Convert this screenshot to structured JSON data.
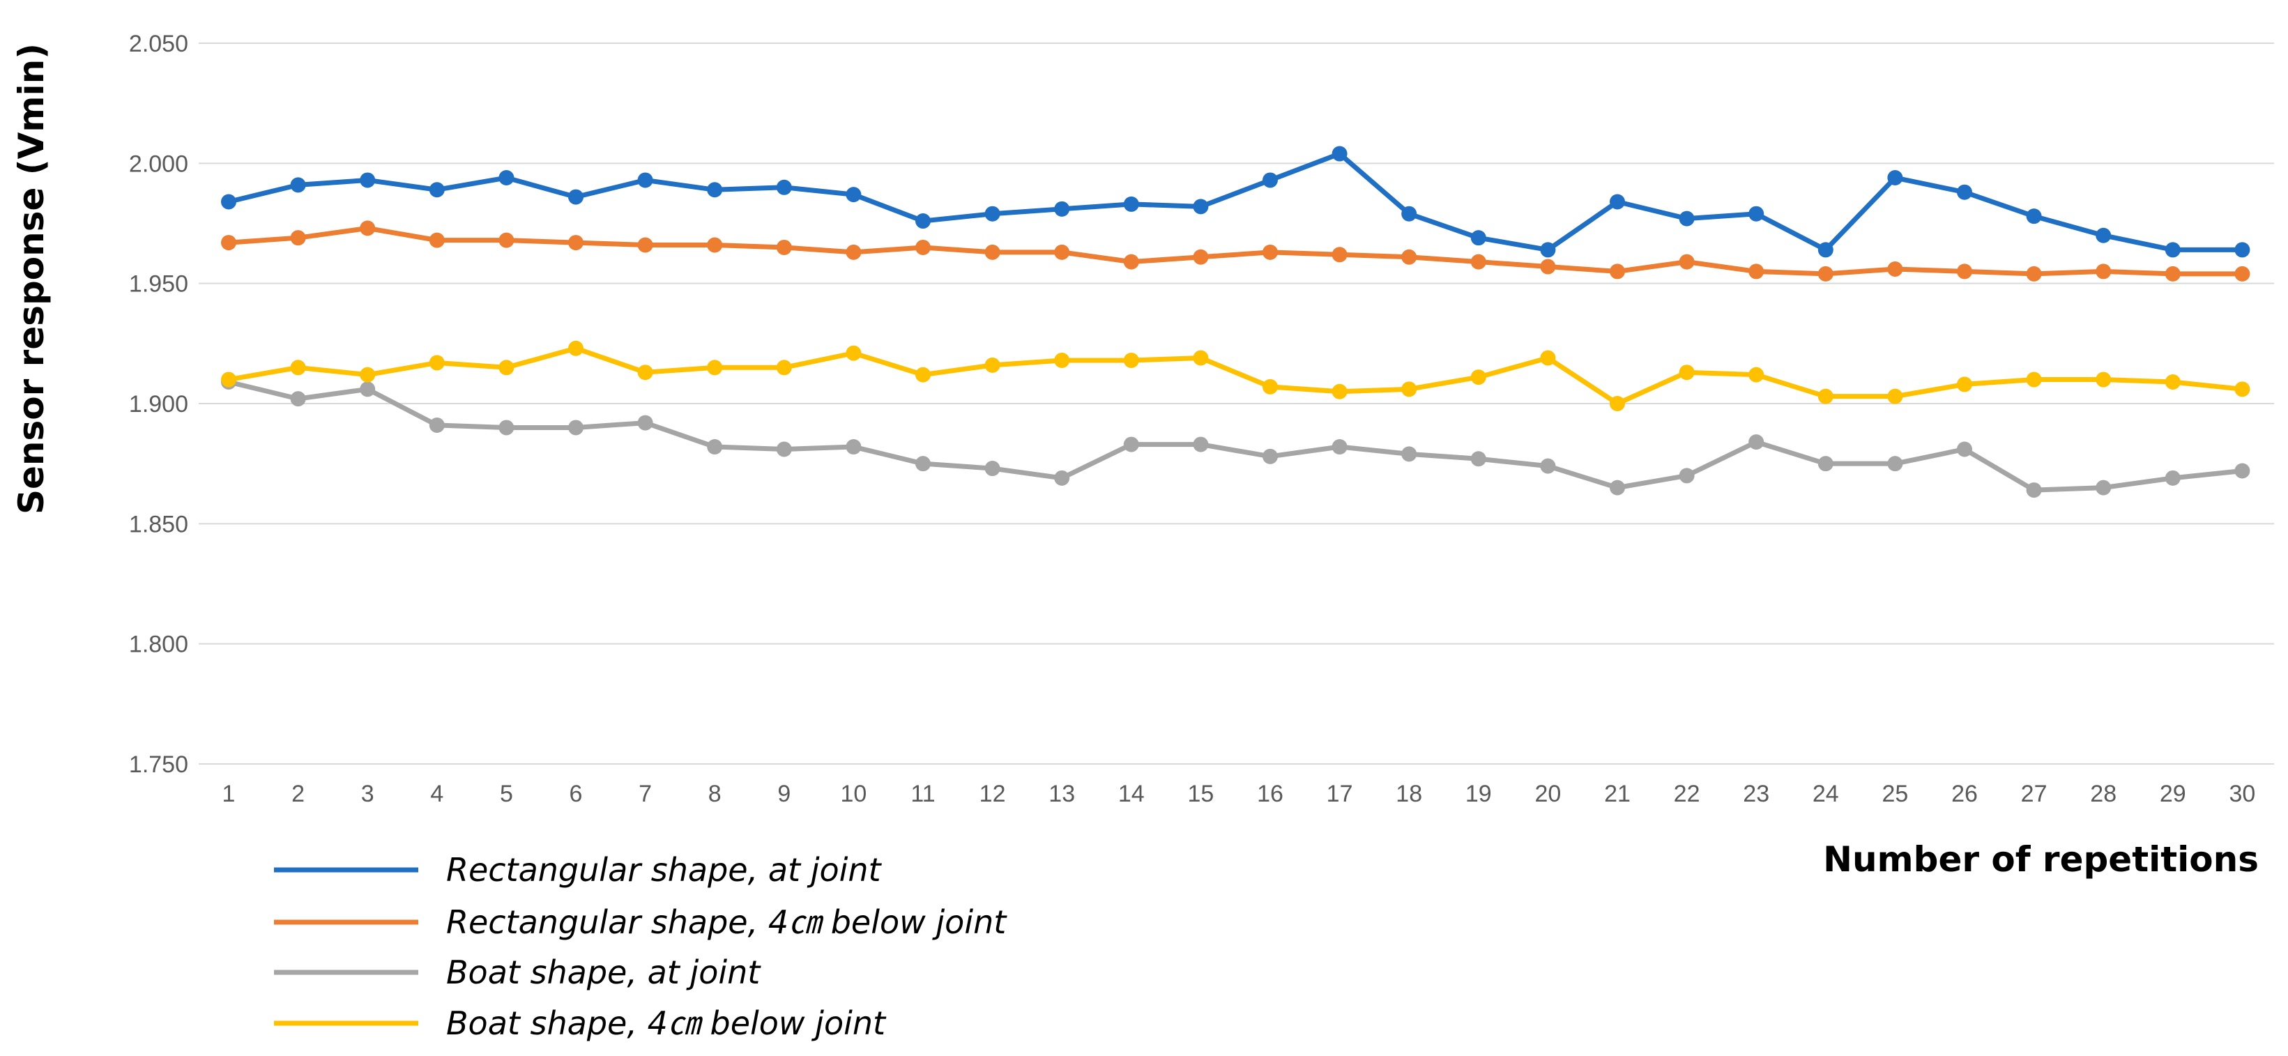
{
  "chart_data": {
    "type": "line",
    "title": "",
    "xlabel": "Number of repetitions",
    "ylabel": "Sensor response (Vmin)",
    "x": [
      1,
      2,
      3,
      4,
      5,
      6,
      7,
      8,
      9,
      10,
      11,
      12,
      13,
      14,
      15,
      16,
      17,
      18,
      19,
      20,
      21,
      22,
      23,
      24,
      25,
      26,
      27,
      28,
      29,
      30
    ],
    "ylim": [
      1.75,
      2.05
    ],
    "yticks": [
      "1.750",
      "1.800",
      "1.850",
      "1.900",
      "1.950",
      "2.000",
      "2.050"
    ],
    "grid": "horizontal",
    "legend_position": "bottom-left",
    "series": [
      {
        "name": "Rectangular shape, at joint",
        "color": "#1F6FC5",
        "values": [
          1.984,
          1.991,
          1.993,
          1.989,
          1.994,
          1.986,
          1.993,
          1.989,
          1.99,
          1.987,
          1.976,
          1.979,
          1.981,
          1.983,
          1.982,
          1.993,
          2.004,
          1.979,
          1.969,
          1.964,
          1.984,
          1.977,
          1.979,
          1.964,
          1.994,
          1.988,
          1.978,
          1.97,
          1.964,
          1.964
        ]
      },
      {
        "name": "Rectangular shape, 4㎝ below joint",
        "color": "#ED7D31",
        "values": [
          1.967,
          1.969,
          1.973,
          1.968,
          1.968,
          1.967,
          1.966,
          1.966,
          1.965,
          1.963,
          1.965,
          1.963,
          1.963,
          1.959,
          1.961,
          1.963,
          1.962,
          1.961,
          1.959,
          1.957,
          1.955,
          1.959,
          1.955,
          1.954,
          1.956,
          1.955,
          1.954,
          1.955,
          1.954,
          1.954
        ]
      },
      {
        "name": "Boat shape, at joint",
        "color": "#A5A5A5",
        "values": [
          1.909,
          1.902,
          1.906,
          1.891,
          1.89,
          1.89,
          1.892,
          1.882,
          1.881,
          1.882,
          1.875,
          1.873,
          1.869,
          1.883,
          1.883,
          1.878,
          1.882,
          1.879,
          1.877,
          1.874,
          1.865,
          1.87,
          1.884,
          1.875,
          1.875,
          1.881,
          1.864,
          1.865,
          1.869,
          1.872
        ]
      },
      {
        "name": "Boat shape, 4㎝ below joint",
        "color": "#FFC000",
        "values": [
          1.91,
          1.915,
          1.912,
          1.917,
          1.915,
          1.923,
          1.913,
          1.915,
          1.915,
          1.921,
          1.912,
          1.916,
          1.918,
          1.918,
          1.919,
          1.907,
          1.905,
          1.906,
          1.911,
          1.919,
          1.9,
          1.913,
          1.912,
          1.903,
          1.903,
          1.908,
          1.91,
          1.91,
          1.909,
          1.906
        ]
      }
    ]
  }
}
